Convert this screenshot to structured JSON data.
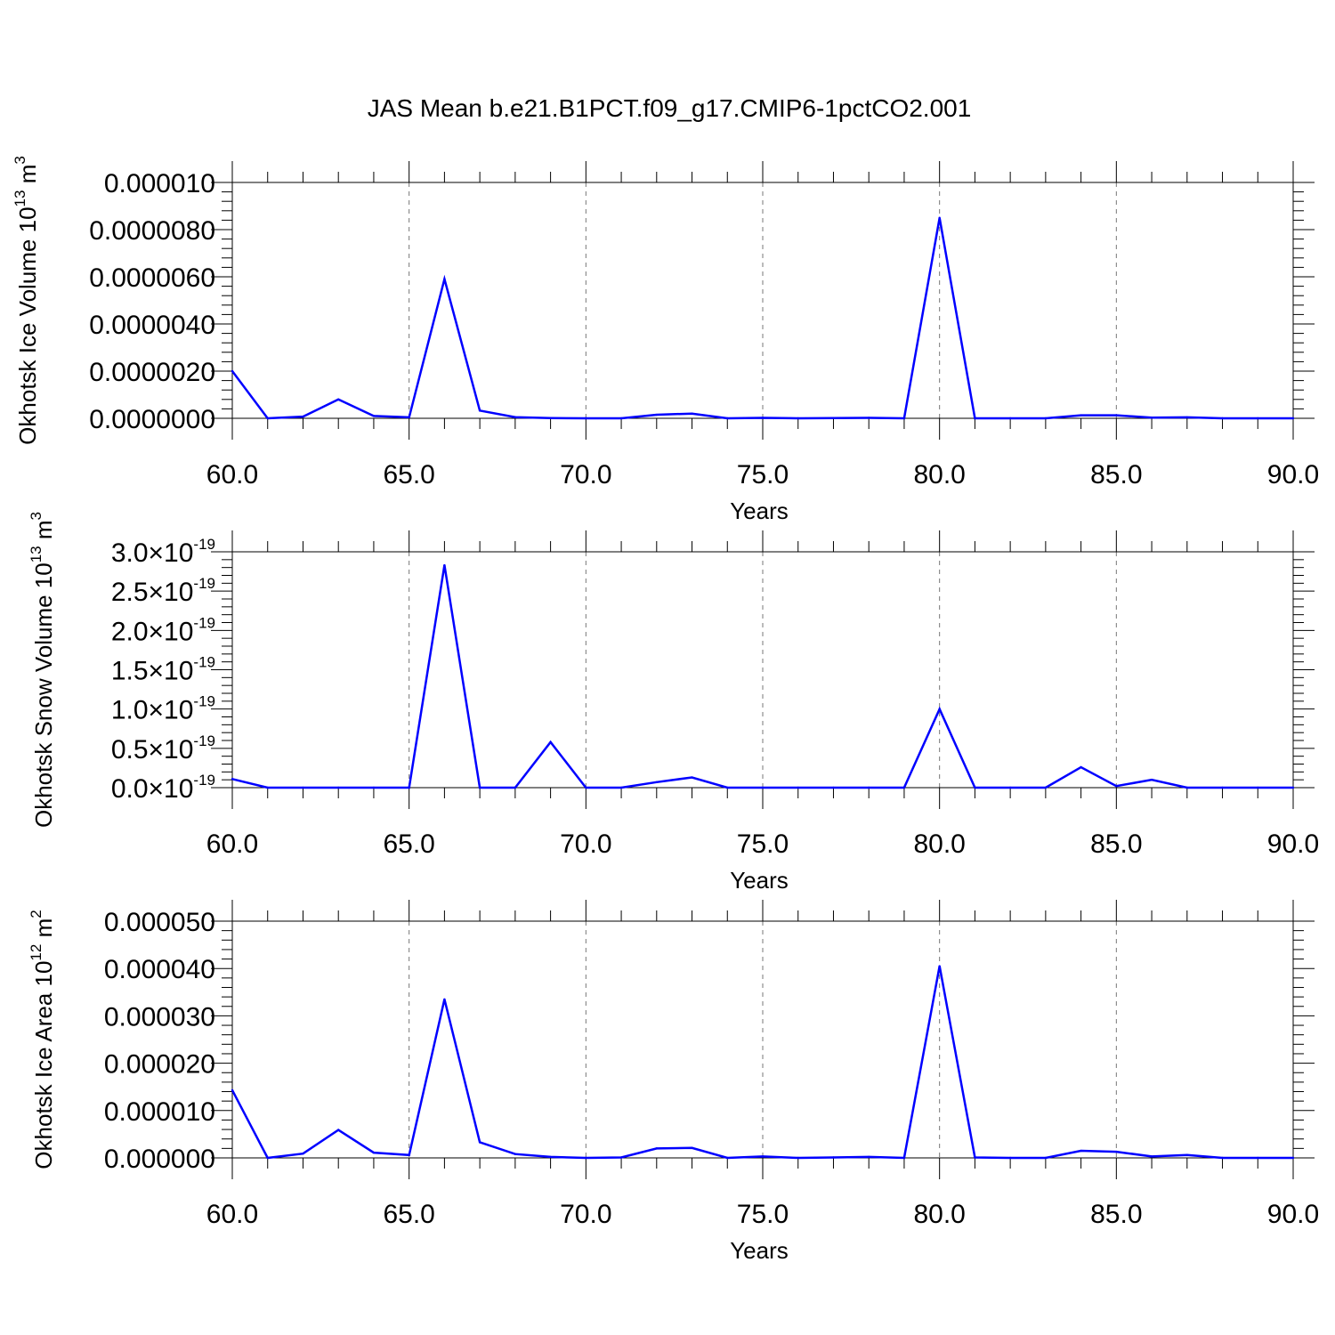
{
  "title": "JAS Mean b.e21.B1PCT.f09_g17.CMIP6-1pctCO2.001",
  "colors": {
    "line": "#0000ff",
    "axis": "#000000",
    "grid": "#777777"
  },
  "chart_data": [
    {
      "type": "line",
      "xlabel": "Years",
      "ylabel_parts": {
        "main": "Okhotsk Ice Volume 10",
        "exp": "13",
        "unit": " m",
        "unit_exp": "3"
      },
      "xlim": [
        60,
        90
      ],
      "ylim": [
        0,
        1e-05
      ],
      "grid": "vertical dashed at major x ticks",
      "xticks": [
        60,
        65,
        70,
        75,
        80,
        85,
        90
      ],
      "xtick_labels": [
        "60.0",
        "65.0",
        "70.0",
        "75.0",
        "80.0",
        "85.0",
        "90.0"
      ],
      "yticks": [
        0,
        2e-06,
        4e-06,
        6e-06,
        8e-06,
        1e-05
      ],
      "ytick_labels": [
        "0.0000000",
        "0.0000020",
        "0.0000040",
        "0.0000060",
        "0.0000080",
        "0.000010"
      ],
      "x": [
        60,
        61,
        62,
        63,
        64,
        65,
        66,
        67,
        68,
        69,
        70,
        71,
        72,
        73,
        74,
        75,
        76,
        77,
        78,
        79,
        80,
        81,
        82,
        83,
        84,
        85,
        86,
        87,
        88,
        89,
        90
      ],
      "y": [
        2e-06,
        0.0,
        7e-08,
        8e-07,
        1e-07,
        4e-08,
        5.9e-06,
        3.3e-07,
        5e-08,
        1e-08,
        0.0,
        0.0,
        1.5e-07,
        2e-07,
        0.0,
        2e-08,
        0.0,
        1e-08,
        2e-08,
        0.0,
        8.5e-06,
        0.0,
        0.0,
        0.0,
        1.3e-07,
        1.3e-07,
        3e-08,
        4e-08,
        0.0,
        0.0,
        0.0
      ]
    },
    {
      "type": "line",
      "xlabel": "Years",
      "ylabel_parts": {
        "main": "Okhotsk Snow Volume 10",
        "exp": "13",
        "unit": " m",
        "unit_exp": "3"
      },
      "xlim": [
        60,
        90
      ],
      "ylim": [
        0,
        3e-19
      ],
      "grid": "vertical dashed at major x ticks",
      "xticks": [
        60,
        65,
        70,
        75,
        80,
        85,
        90
      ],
      "xtick_labels": [
        "60.0",
        "65.0",
        "70.0",
        "75.0",
        "80.0",
        "85.0",
        "90.0"
      ],
      "yticks": [
        0,
        5e-20,
        1e-19,
        1.5e-19,
        2e-19,
        2.5e-19,
        3e-19
      ],
      "ytick_labels": [
        "0.0",
        "0.5",
        "1.0",
        "1.5",
        "2.0",
        "2.5",
        "3.0"
      ],
      "ytick_suffix": "×10",
      "ytick_exp": "-19",
      "x": [
        60,
        61,
        62,
        63,
        64,
        65,
        66,
        67,
        68,
        69,
        70,
        71,
        72,
        73,
        74,
        75,
        76,
        77,
        78,
        79,
        80,
        81,
        82,
        83,
        84,
        85,
        86,
        87,
        88,
        89,
        90
      ],
      "y": [
        1.1e-20,
        0.0,
        0.0,
        0.0,
        0.0,
        0.0,
        2.83e-19,
        0.0,
        0.0,
        5.8e-20,
        0.0,
        0.0,
        7e-21,
        1.3e-20,
        0.0,
        0.0,
        0.0,
        0.0,
        0.0,
        0.0,
        1e-19,
        0.0,
        0.0,
        0.0,
        2.6e-20,
        2e-21,
        1e-20,
        0.0,
        0.0,
        0.0,
        0.0
      ]
    },
    {
      "type": "line",
      "xlabel": "Years",
      "ylabel_parts": {
        "main": "Okhotsk Ice Area 10",
        "exp": "12",
        "unit": " m",
        "unit_exp": "2"
      },
      "xlim": [
        60,
        90
      ],
      "ylim": [
        0,
        5e-05
      ],
      "grid": "vertical dashed at major x ticks",
      "xticks": [
        60,
        65,
        70,
        75,
        80,
        85,
        90
      ],
      "xtick_labels": [
        "60.0",
        "65.0",
        "70.0",
        "75.0",
        "80.0",
        "85.0",
        "90.0"
      ],
      "yticks": [
        0,
        1e-05,
        2e-05,
        3e-05,
        4e-05,
        5e-05
      ],
      "ytick_labels": [
        "0.000000",
        "0.000010",
        "0.000020",
        "0.000030",
        "0.000040",
        "0.000050"
      ],
      "x": [
        60,
        61,
        62,
        63,
        64,
        65,
        66,
        67,
        68,
        69,
        70,
        71,
        72,
        73,
        74,
        75,
        76,
        77,
        78,
        79,
        80,
        81,
        82,
        83,
        84,
        85,
        86,
        87,
        88,
        89,
        90
      ],
      "y": [
        1.43e-05,
        0.0,
        9e-07,
        5.9e-06,
        1.1e-06,
        6e-07,
        3.35e-05,
        3.3e-06,
        8e-07,
        2e-07,
        0.0,
        1e-07,
        2e-06,
        2.1e-06,
        0.0,
        3e-07,
        0.0,
        1e-07,
        2e-07,
        0.0,
        4.05e-05,
        1e-07,
        0.0,
        0.0,
        1.5e-06,
        1.3e-06,
        3e-07,
        6e-07,
        0.0,
        0.0,
        0.0
      ]
    }
  ]
}
